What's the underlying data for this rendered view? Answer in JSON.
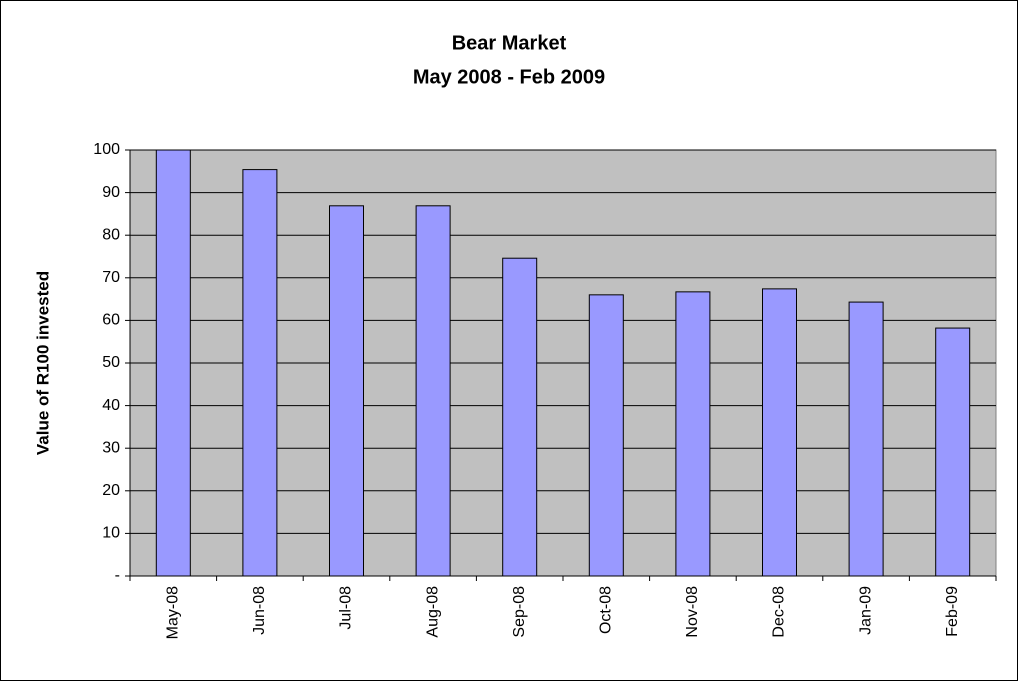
{
  "chart_data": {
    "type": "bar",
    "title": "Bear Market",
    "subtitle": "May 2008 - Feb 2009",
    "y_label": "Value of R100 invested",
    "categories": [
      "May-08",
      "Jun-08",
      "Jul-08",
      "Aug-08",
      "Sep-08",
      "Oct-08",
      "Nov-08",
      "Dec-08",
      "Jan-09",
      "Feb-09"
    ],
    "values": [
      100,
      95.4,
      86.9,
      86.9,
      74.6,
      66,
      66.7,
      67.4,
      64.3,
      58.2
    ],
    "color": "#9999ff",
    "ylim": [
      0,
      100
    ],
    "yticks": [
      {
        "value": 0,
        "label": "-"
      },
      10,
      20,
      30,
      40,
      50,
      60,
      70,
      80,
      90,
      100
    ],
    "grid": true
  }
}
